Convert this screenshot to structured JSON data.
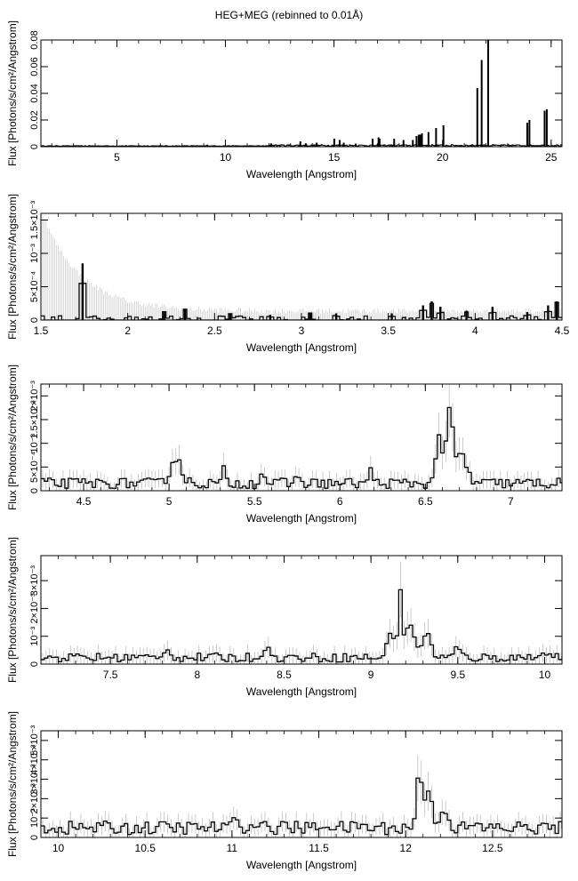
{
  "title": "HEG+MEG (rebinned to 0.01Å)",
  "chart_data": [
    {
      "type": "histogram",
      "xlabel": "Wavelength [Angstrom]",
      "ylabel": "Flux [Photons/s/cm²/Angstrom]",
      "xlim": [
        1.5,
        25.5
      ],
      "ylim": [
        0,
        0.08
      ],
      "xticks": [
        5,
        10,
        15,
        20,
        25
      ],
      "yticks": [
        0,
        0.02,
        0.04,
        0.06,
        0.08
      ],
      "ytick_labels": [
        "0",
        "0.02",
        "0.04",
        "0.06",
        "0.08"
      ],
      "lines": [
        [
          6.65,
          0.001
        ],
        [
          9.17,
          0.0015
        ],
        [
          10.2,
          0.001
        ],
        [
          12.1,
          0.0025
        ],
        [
          13.45,
          0.004
        ],
        [
          13.7,
          0.0025
        ],
        [
          14.2,
          0.003
        ],
        [
          15.01,
          0.006
        ],
        [
          15.26,
          0.005
        ],
        [
          15.45,
          0.003
        ],
        [
          16.0,
          0.002
        ],
        [
          16.78,
          0.006
        ],
        [
          17.05,
          0.007
        ],
        [
          17.1,
          0.006
        ],
        [
          17.77,
          0.006
        ],
        [
          18.2,
          0.005
        ],
        [
          18.63,
          0.005
        ],
        [
          18.8,
          0.008
        ],
        [
          18.9,
          0.009
        ],
        [
          18.97,
          0.009
        ],
        [
          19.05,
          0.01
        ],
        [
          19.35,
          0.011
        ],
        [
          19.7,
          0.014
        ],
        [
          20.04,
          0.016
        ],
        [
          21.6,
          0.044
        ],
        [
          21.8,
          0.065
        ],
        [
          22.1,
          0.08
        ],
        [
          23.9,
          0.018
        ],
        [
          24.0,
          0.02
        ],
        [
          24.7,
          0.027
        ],
        [
          24.8,
          0.028
        ]
      ]
    },
    {
      "type": "histogram",
      "xlabel": "Wavelength [Angstrom]",
      "ylabel": "Flux [Photons/s/cm²/Angstrom]",
      "xlim": [
        1.5,
        4.5
      ],
      "ylim": [
        0,
        0.0016
      ],
      "xticks": [
        1.5,
        2,
        2.5,
        3,
        3.5,
        4,
        4.5
      ],
      "yticks": [
        0,
        0.0005,
        0.001,
        0.0015
      ],
      "ytick_labels": [
        "0",
        "5×10⁻⁴",
        "10⁻³",
        "1.5×10⁻³"
      ],
      "peaks": [
        [
          1.74,
          0.00085
        ],
        [
          2.21,
          0.00012
        ],
        [
          2.33,
          0.00016
        ],
        [
          2.59,
          0.0001
        ],
        [
          2.82,
          8e-05
        ],
        [
          3.05,
          0.00011
        ],
        [
          3.2,
          0.0001
        ],
        [
          3.52,
          0.0001
        ],
        [
          3.7,
          0.00022
        ],
        [
          3.75,
          0.00028
        ],
        [
          3.8,
          0.0002
        ],
        [
          3.95,
          0.00014
        ],
        [
          4.1,
          0.0002
        ],
        [
          4.3,
          0.00012
        ],
        [
          4.42,
          0.00022
        ],
        [
          4.47,
          0.00028
        ]
      ]
    },
    {
      "type": "histogram",
      "xlabel": "Wavelength [Angstrom]",
      "ylabel": "Flux [Photons/s/cm²/Angstrom]",
      "xlim": [
        4.25,
        7.3
      ],
      "ylim": [
        0,
        0.00225
      ],
      "xticks": [
        4.5,
        5,
        5.5,
        6,
        6.5,
        7
      ],
      "yticks": [
        0,
        0.0005,
        0.001,
        0.0015,
        0.002
      ],
      "ytick_labels": [
        "0",
        "5×10⁻⁴",
        "10⁻³",
        "1.5×10⁻³",
        "2×10⁻³"
      ],
      "peaks": [
        [
          5.04,
          0.00075,
          0.03
        ],
        [
          5.12,
          0.0003,
          0.02
        ],
        [
          5.32,
          0.0006,
          0.015
        ],
        [
          5.55,
          0.0004,
          0.02
        ],
        [
          5.75,
          0.0003,
          0.03
        ],
        [
          6.18,
          0.00055,
          0.015
        ],
        [
          6.58,
          0.0011,
          0.025
        ],
        [
          6.64,
          0.0016,
          0.03
        ],
        [
          6.7,
          0.0009,
          0.03
        ],
        [
          6.74,
          0.0006,
          0.025
        ],
        [
          7.1,
          0.0002,
          0.03
        ]
      ]
    },
    {
      "type": "histogram",
      "xlabel": "Wavelength [Angstrom]",
      "ylabel": "Flux [Photons/s/cm²/Angstrom]",
      "xlim": [
        7.1,
        10.1
      ],
      "ylim": [
        0,
        0.0039
      ],
      "xticks": [
        7.5,
        8,
        8.5,
        9,
        9.5,
        10
      ],
      "yticks": [
        0,
        0.001,
        0.002,
        0.003
      ],
      "ytick_labels": [
        "0",
        "10⁻³",
        "2×10⁻³",
        "3×10⁻³"
      ],
      "peaks": [
        [
          7.82,
          0.0005,
          0.03
        ],
        [
          8.4,
          0.0006,
          0.025
        ],
        [
          9.12,
          0.0012,
          0.03
        ],
        [
          9.17,
          0.0026,
          0.015
        ],
        [
          9.23,
          0.0015,
          0.03
        ],
        [
          9.32,
          0.0011,
          0.03
        ],
        [
          9.5,
          0.0006,
          0.03
        ],
        [
          10.0,
          0.0004,
          0.05
        ]
      ]
    },
    {
      "type": "histogram",
      "xlabel": "Wavelength [Angstrom]",
      "ylabel": "Flux [Photons/s/cm²/Angstrom]",
      "xlim": [
        9.9,
        12.9
      ],
      "ylim": [
        0,
        0.0055
      ],
      "xticks": [
        10,
        10.5,
        11,
        11.5,
        12,
        12.5
      ],
      "yticks": [
        0,
        0.001,
        0.002,
        0.003,
        0.004,
        0.005
      ],
      "ytick_labels": [
        "0",
        "10⁻³",
        "2×10⁻³",
        "3×10⁻³",
        "4×10⁻³",
        "5×10⁻³"
      ],
      "peaks": [
        [
          10.24,
          0.0008,
          0.02
        ],
        [
          11.02,
          0.0011,
          0.03
        ],
        [
          11.18,
          0.0008,
          0.03
        ],
        [
          11.3,
          0.0008,
          0.03
        ],
        [
          11.55,
          0.0006,
          0.03
        ],
        [
          11.75,
          0.0007,
          0.03
        ],
        [
          12.08,
          0.0032,
          0.02
        ],
        [
          12.13,
          0.0028,
          0.025
        ],
        [
          12.22,
          0.0015,
          0.03
        ],
        [
          12.4,
          0.0008,
          0.03
        ]
      ]
    }
  ]
}
